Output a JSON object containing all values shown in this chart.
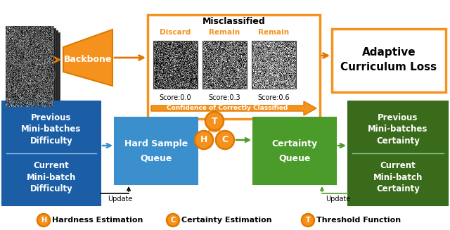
{
  "colors": {
    "orange": "#F5921E",
    "orange_dark": "#E07800",
    "blue_dark": "#1B5EA6",
    "blue_medium": "#3B8FCC",
    "green_dark": "#3A6B1A",
    "green_medium": "#4B9B2A",
    "white": "#FFFFFF",
    "black": "#000000"
  },
  "legend": {
    "H_label": "Hardness Estimation",
    "C_label": "Certainty Estimation",
    "T_label": "Threshold Function"
  }
}
